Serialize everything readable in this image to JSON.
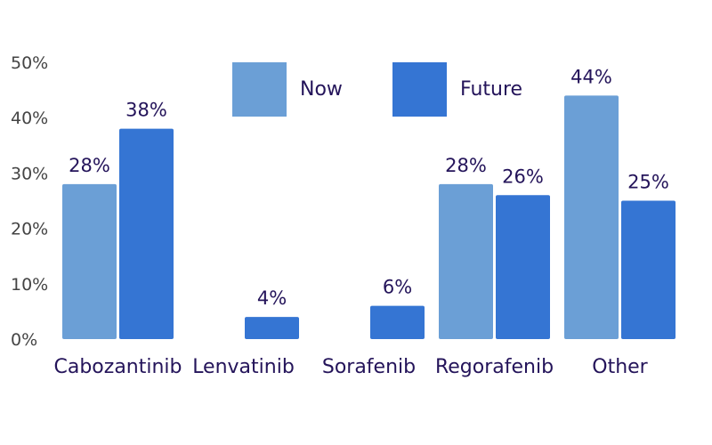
{
  "chart_data": {
    "type": "bar",
    "categories": [
      "Cabozantinib",
      "Lenvatinib",
      "Sorafenib",
      "Regorafenib",
      "Other"
    ],
    "series": [
      {
        "name": "Now",
        "color": "#6b9fd6",
        "values": [
          28,
          null,
          null,
          28,
          44
        ],
        "labels": [
          "28%",
          "",
          "",
          "28%",
          "44%"
        ]
      },
      {
        "name": "Future",
        "color": "#3575d3",
        "values": [
          38,
          4,
          6,
          26,
          25
        ],
        "labels": [
          "38%",
          "4%",
          "6%",
          "26%",
          "25%"
        ]
      }
    ],
    "yticks": [
      0,
      10,
      20,
      30,
      40,
      50
    ],
    "ytick_labels": [
      "0%",
      "10%",
      "20%",
      "30%",
      "40%",
      "50%"
    ],
    "ylim": [
      0,
      50
    ],
    "legend_position": "top-center",
    "grid": false
  }
}
